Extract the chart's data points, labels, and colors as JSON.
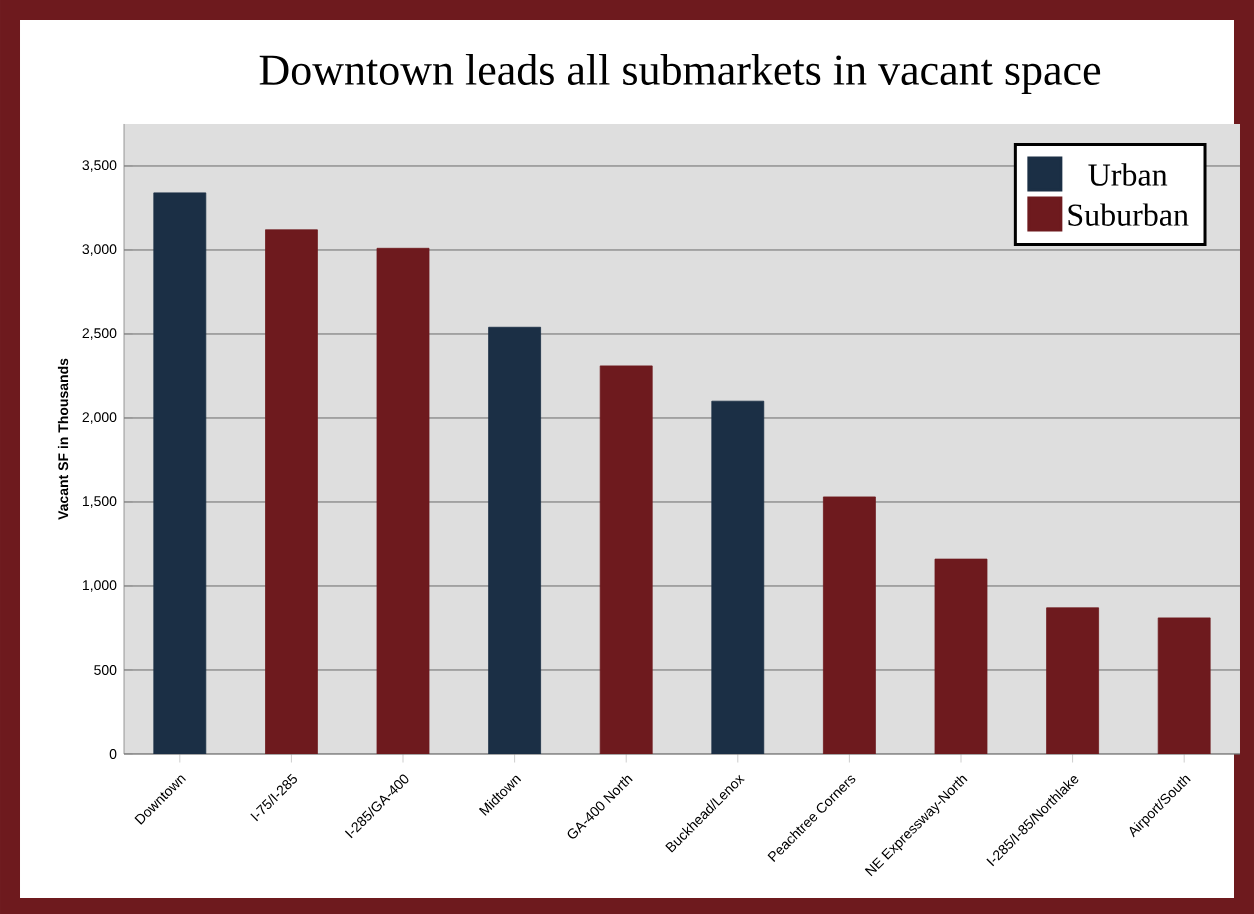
{
  "chart_data": {
    "type": "bar",
    "title": "Downtown leads all submarkets in vacant space",
    "ylabel": "Vacant SF in Thousands",
    "categories": [
      "Downtown",
      "I-75/I-285",
      "I-285/GA-400",
      "Midtown",
      "GA-400 North",
      "Buckhead/Lenox",
      "Peachtree Corners",
      "NE Expressway-North",
      "I-285/I-85/Northlake",
      "Airport/South"
    ],
    "series": [
      {
        "name": "Urban",
        "color": "#1b2f45",
        "values": [
          3340,
          null,
          null,
          2540,
          null,
          2100,
          null,
          null,
          null,
          null
        ]
      },
      {
        "name": "Suburban",
        "color": "#6e1a1e",
        "values": [
          null,
          3120,
          3010,
          null,
          2310,
          null,
          1530,
          1160,
          870,
          810
        ]
      }
    ],
    "ylim": [
      0,
      3750
    ],
    "yticks": [
      0,
      {
        "value": 500,
        "label": "500"
      },
      {
        "value": 1000,
        "label": "1,000"
      },
      {
        "value": 1500,
        "label": "1,500"
      },
      {
        "value": 2000,
        "label": "2,000"
      },
      {
        "value": 2500,
        "label": "2,500"
      },
      {
        "value": 3000,
        "label": "3,000"
      },
      {
        "value": 3500,
        "label": "3,500"
      }
    ],
    "grid": "y",
    "legend": "top right"
  }
}
